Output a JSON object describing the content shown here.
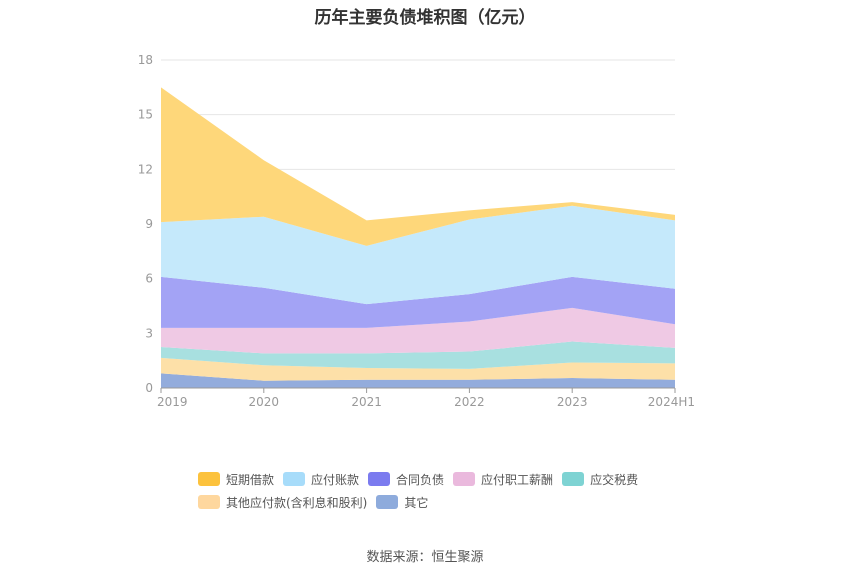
{
  "chart_data": {
    "type": "area",
    "stacked": true,
    "title": "历年主要负债堆积图（亿元）",
    "categories": [
      "2019",
      "2020",
      "2021",
      "2022",
      "2023",
      "2024H1"
    ],
    "ylim": [
      0,
      18
    ],
    "yticks": [
      0,
      3,
      6,
      9,
      12,
      15,
      18
    ],
    "grid": true,
    "legend_position": "bottom",
    "series": [
      {
        "name": "其它",
        "color": "#93acdc",
        "values": [
          0.8,
          0.4,
          0.45,
          0.45,
          0.55,
          0.45
        ]
      },
      {
        "name": "其他应付款(含利息和股利)",
        "color": "#fde0a8",
        "values": [
          0.85,
          0.85,
          0.65,
          0.6,
          0.85,
          0.9
        ]
      },
      {
        "name": "应交税费",
        "color": "#a8e0e0",
        "values": [
          0.6,
          0.65,
          0.8,
          0.95,
          1.15,
          0.85
        ]
      },
      {
        "name": "应付职工薪酬",
        "color": "#efc9e4",
        "values": [
          1.05,
          1.4,
          1.4,
          1.65,
          1.85,
          1.3
        ]
      },
      {
        "name": "合同负债",
        "color": "#a3a3f5",
        "values": [
          2.8,
          2.2,
          1.3,
          1.5,
          1.7,
          1.95
        ]
      },
      {
        "name": "应付账款",
        "color": "#c5e9fb",
        "values": [
          3.0,
          3.9,
          3.2,
          4.1,
          3.9,
          3.75
        ]
      },
      {
        "name": "短期借款",
        "color": "#fed77a",
        "values": [
          7.4,
          3.1,
          1.4,
          0.5,
          0.2,
          0.3
        ]
      }
    ]
  },
  "legend": {
    "items": [
      {
        "label": "短期借款",
        "color": "#fcc23d"
      },
      {
        "label": "应付账款",
        "color": "#a7dcfa"
      },
      {
        "label": "合同负债",
        "color": "#7b7bef"
      },
      {
        "label": "应付职工薪酬",
        "color": "#eab9dd"
      },
      {
        "label": "应交税费",
        "color": "#7ed3d3"
      },
      {
        "label": "其他应付款(含利息和股利)",
        "color": "#fed79e"
      },
      {
        "label": "其它",
        "color": "#8eabdc"
      }
    ]
  },
  "source": "数据来源：恒生聚源"
}
